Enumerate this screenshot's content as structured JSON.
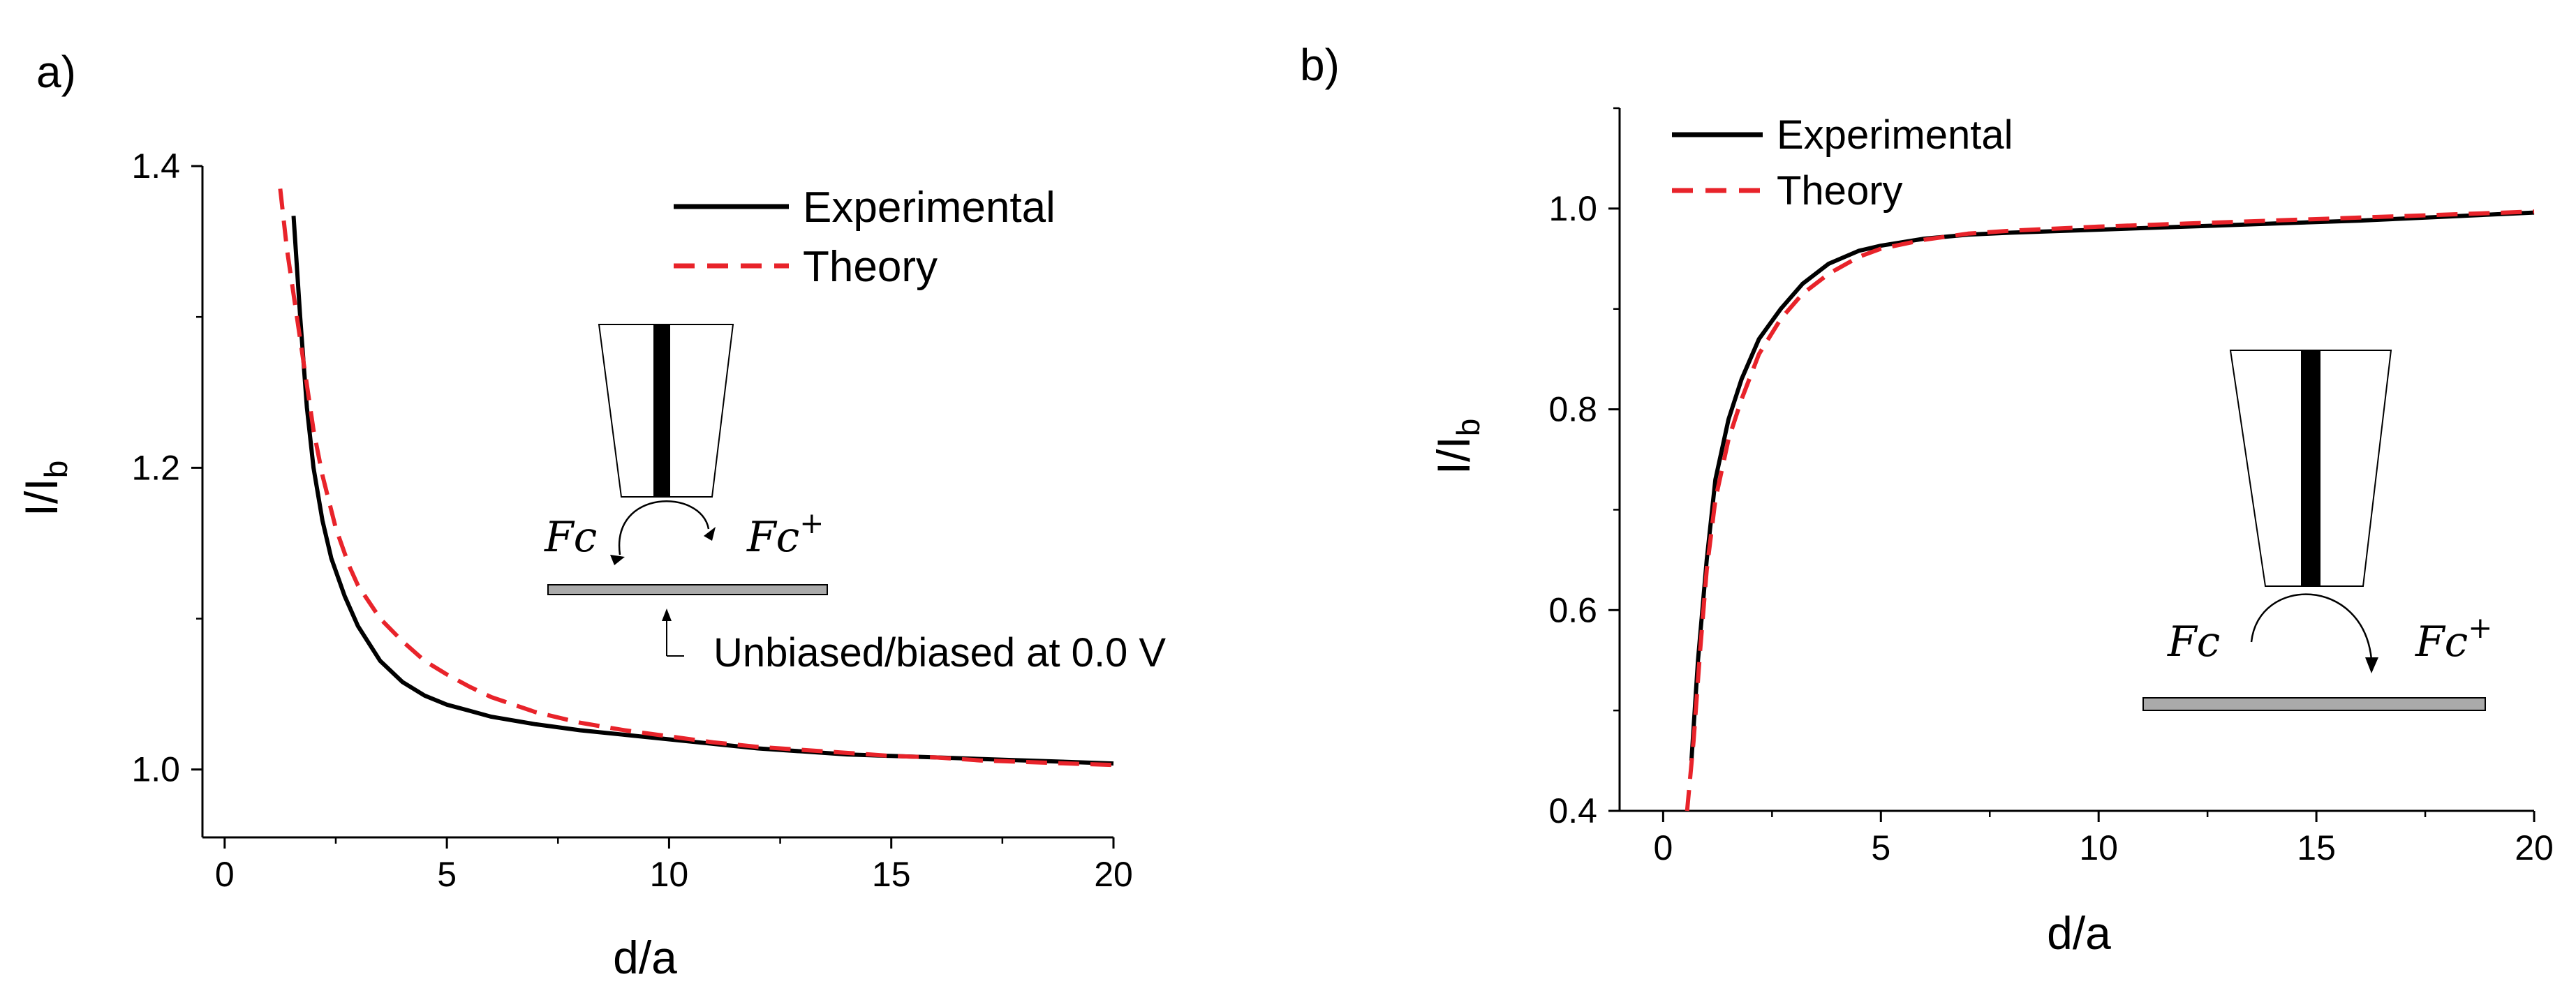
{
  "chart_data": [
    {
      "panel_label": "a)",
      "type": "line",
      "xlabel": "d/a",
      "ylabel_main": "I/I",
      "ylabel_sub": "b",
      "xlim": [
        -0.5,
        20
      ],
      "ylim": [
        0.955,
        1.4
      ],
      "xticks": [
        0,
        5,
        10,
        15,
        20
      ],
      "xtick_labels": [
        "0",
        "5",
        "10",
        "15",
        "20"
      ],
      "yticks": [
        1.0,
        1.2,
        1.4
      ],
      "ytick_labels": [
        "1.0",
        "1.2",
        "1.4"
      ],
      "ytick_minor": [
        1.1,
        1.3
      ],
      "legend": [
        "Experimental",
        "Theory"
      ],
      "series": [
        {
          "name": "Experimental",
          "style": "solid",
          "color": "#000000",
          "x": [
            1.55,
            1.7,
            1.85,
            2.0,
            2.2,
            2.4,
            2.7,
            3.0,
            3.5,
            4.0,
            4.5,
            5.0,
            5.5,
            6.0,
            7.0,
            8.0,
            9.0,
            10.0,
            11.0,
            12.0,
            13.0,
            14.0,
            15.0,
            16.0,
            17.0,
            18.0,
            19.0,
            20.0
          ],
          "y": [
            1.367,
            1.3,
            1.24,
            1.2,
            1.165,
            1.14,
            1.115,
            1.095,
            1.072,
            1.058,
            1.049,
            1.043,
            1.039,
            1.035,
            1.03,
            1.026,
            1.023,
            1.02,
            1.017,
            1.014,
            1.012,
            1.01,
            1.009,
            1.008,
            1.007,
            1.006,
            1.005,
            1.004
          ]
        },
        {
          "name": "Theory",
          "style": "dashed",
          "color": "#e8232a",
          "x": [
            1.25,
            1.4,
            1.6,
            1.8,
            2.0,
            2.2,
            2.5,
            2.8,
            3.0,
            3.5,
            4.0,
            4.5,
            5.0,
            5.5,
            6.0,
            7.0,
            8.0,
            9.0,
            10.0,
            11.0,
            12.0,
            13.0,
            14.0,
            15.0,
            16.0,
            17.0,
            18.0,
            19.0,
            20.0
          ],
          "y": [
            1.385,
            1.345,
            1.305,
            1.265,
            1.225,
            1.195,
            1.16,
            1.135,
            1.122,
            1.1,
            1.085,
            1.072,
            1.063,
            1.055,
            1.048,
            1.038,
            1.031,
            1.026,
            1.022,
            1.018,
            1.015,
            1.013,
            1.011,
            1.009,
            1.008,
            1.006,
            1.005,
            1.004,
            1.003
          ]
        }
      ],
      "inset": {
        "label_left": "Fc",
        "label_right": "Fc",
        "sup_right": "+",
        "caption": "Unbiased/biased at 0.0 V"
      }
    },
    {
      "panel_label": "b)",
      "type": "line",
      "xlabel": "d/a",
      "ylabel_main": "I/I",
      "ylabel_sub": "b",
      "xlim": [
        -1,
        20
      ],
      "ylim": [
        0.4,
        1.1
      ],
      "xticks": [
        0,
        5,
        10,
        15,
        20
      ],
      "xtick_labels": [
        "0",
        "5",
        "10",
        "15",
        "20"
      ],
      "yticks": [
        0.4,
        0.6,
        0.8,
        1.0
      ],
      "ytick_labels": [
        "0.4",
        "0.6",
        "0.8",
        "1.0"
      ],
      "ytick_minor": [
        0.5,
        0.7,
        0.9,
        1.1
      ],
      "legend": [
        "Experimental",
        "Theory"
      ],
      "series": [
        {
          "name": "Experimental",
          "style": "solid",
          "color": "#000000",
          "x": [
            0.65,
            0.8,
            1.0,
            1.2,
            1.5,
            1.8,
            2.2,
            2.7,
            3.2,
            3.8,
            4.5,
            5.0,
            6.0,
            7.0,
            8.0,
            10.0,
            12.0,
            14.0,
            16.0,
            18.0,
            20.0
          ],
          "y": [
            0.45,
            0.55,
            0.65,
            0.73,
            0.79,
            0.83,
            0.87,
            0.9,
            0.925,
            0.945,
            0.958,
            0.963,
            0.97,
            0.974,
            0.976,
            0.979,
            0.982,
            0.985,
            0.988,
            0.992,
            0.996
          ]
        },
        {
          "name": "Theory",
          "style": "dashed",
          "color": "#e8232a",
          "x": [
            0.55,
            0.7,
            0.85,
            1.0,
            1.2,
            1.5,
            1.8,
            2.2,
            2.7,
            3.2,
            3.8,
            4.5,
            5.0,
            6.0,
            7.0,
            8.0,
            10.0,
            12.0,
            14.0,
            16.0,
            18.0,
            20.0
          ],
          "y": [
            0.4,
            0.47,
            0.56,
            0.64,
            0.71,
            0.77,
            0.81,
            0.855,
            0.89,
            0.915,
            0.935,
            0.952,
            0.96,
            0.969,
            0.975,
            0.978,
            0.982,
            0.985,
            0.988,
            0.991,
            0.994,
            0.997
          ]
        }
      ],
      "inset": {
        "label_left": "Fc",
        "label_right": "Fc",
        "sup_right": "+"
      }
    }
  ]
}
